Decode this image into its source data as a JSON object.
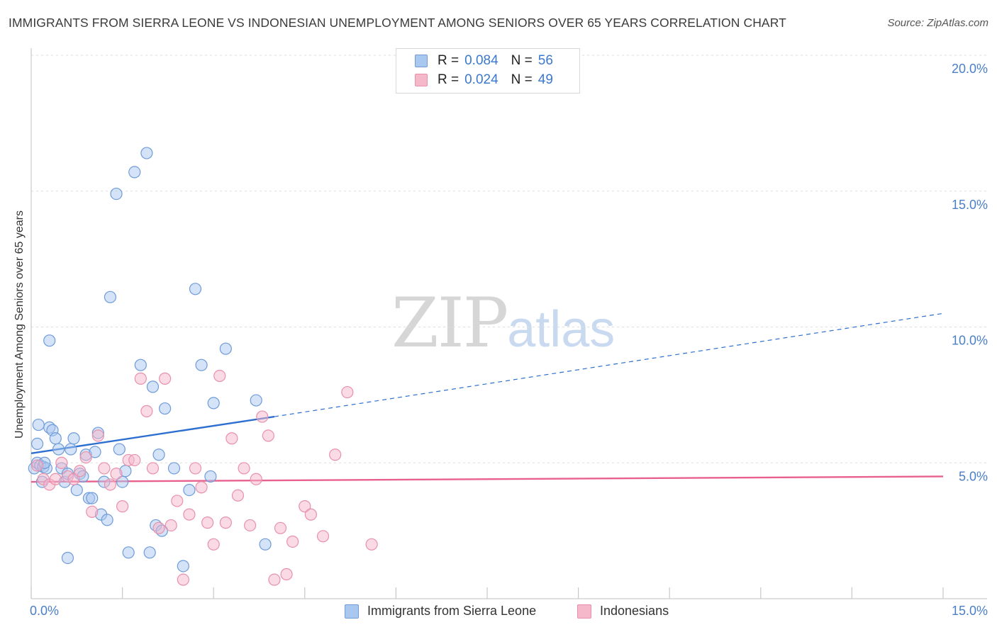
{
  "title": "IMMIGRANTS FROM SIERRA LEONE VS INDONESIAN UNEMPLOYMENT AMONG SENIORS OVER 65 YEARS CORRELATION CHART",
  "source": "Source: ZipAtlas.com",
  "watermark": {
    "zip": "ZIP",
    "atlas": "atlas"
  },
  "legend": {
    "row1": {
      "r_label": "R =",
      "r_value": "0.084",
      "n_label": "N =",
      "n_value": "56"
    },
    "row2": {
      "r_label": "R =",
      "r_value": "0.024",
      "n_label": "N =",
      "n_value": "49"
    }
  },
  "bottom_legend": {
    "series1": "Immigrants from Sierra Leone",
    "series2": "Indonesians"
  },
  "colors": {
    "blue_fill": "#a9c8f0",
    "blue_stroke": "#6f9bd8",
    "blue_line": "#2d6fd0",
    "pink_fill": "#f5b8cb",
    "pink_stroke": "#e890ac",
    "pink_line": "#e8608e",
    "tick_text": "#4a7fc8",
    "grid": "#dddddd"
  },
  "chart_data": {
    "type": "scatter",
    "title": "IMMIGRANTS FROM SIERRA LEONE VS INDONESIAN UNEMPLOYMENT AMONG SENIORS OVER 65 YEARS CORRELATION CHART",
    "xlabel": "",
    "ylabel": "Unemployment Among Seniors over 65 years",
    "xlim": [
      0,
      15
    ],
    "ylim": [
      0,
      20
    ],
    "x_tick_labels": [
      "0.0%",
      "15.0%"
    ],
    "y_ticks": [
      {
        "value": 5,
        "label": "5.0%"
      },
      {
        "value": 10,
        "label": "10.0%"
      },
      {
        "value": 15,
        "label": "15.0%"
      },
      {
        "value": 20,
        "label": "20.0%"
      }
    ],
    "series": [
      {
        "name": "Immigrants from Sierra Leone",
        "color": "blue",
        "trend": {
          "x0": 0.0,
          "y0": 5.35,
          "x1": 4.0,
          "y1": 6.7,
          "dashed_to_x": 15.0,
          "dashed_to_y": 10.5
        },
        "points": [
          [
            0.1,
            5.7
          ],
          [
            0.05,
            4.8
          ],
          [
            0.1,
            5.0
          ],
          [
            0.15,
            4.9
          ],
          [
            0.2,
            4.85
          ],
          [
            0.25,
            4.8
          ],
          [
            0.3,
            6.3
          ],
          [
            0.35,
            6.2
          ],
          [
            0.4,
            5.9
          ],
          [
            0.45,
            5.5
          ],
          [
            0.5,
            4.8
          ],
          [
            0.55,
            4.3
          ],
          [
            0.6,
            4.6
          ],
          [
            0.65,
            5.5
          ],
          [
            0.7,
            5.9
          ],
          [
            0.75,
            4.0
          ],
          [
            0.8,
            4.6
          ],
          [
            0.85,
            4.5
          ],
          [
            0.9,
            5.3
          ],
          [
            0.95,
            3.7
          ],
          [
            1.0,
            3.7
          ],
          [
            1.05,
            5.4
          ],
          [
            1.1,
            6.1
          ],
          [
            1.15,
            3.1
          ],
          [
            1.2,
            4.3
          ],
          [
            1.25,
            2.9
          ],
          [
            1.3,
            11.1
          ],
          [
            1.4,
            14.9
          ],
          [
            1.45,
            5.5
          ],
          [
            1.5,
            4.3
          ],
          [
            1.55,
            4.7
          ],
          [
            1.6,
            1.7
          ],
          [
            1.7,
            15.7
          ],
          [
            1.8,
            8.6
          ],
          [
            1.9,
            16.4
          ],
          [
            1.95,
            1.7
          ],
          [
            2.0,
            7.8
          ],
          [
            2.05,
            2.7
          ],
          [
            2.1,
            5.3
          ],
          [
            2.15,
            2.5
          ],
          [
            2.2,
            7.0
          ],
          [
            2.35,
            4.8
          ],
          [
            2.5,
            1.2
          ],
          [
            2.6,
            4.0
          ],
          [
            2.7,
            11.4
          ],
          [
            2.8,
            8.6
          ],
          [
            2.95,
            4.5
          ],
          [
            3.0,
            7.2
          ],
          [
            3.2,
            9.2
          ],
          [
            3.7,
            7.3
          ],
          [
            3.85,
            2.0
          ],
          [
            0.3,
            9.5
          ],
          [
            0.12,
            6.4
          ],
          [
            0.6,
            1.5
          ],
          [
            0.18,
            4.3
          ],
          [
            0.22,
            5.0
          ]
        ]
      },
      {
        "name": "Indonesians",
        "color": "pink",
        "trend": {
          "x0": 0.0,
          "y0": 4.3,
          "x1": 15.0,
          "y1": 4.5
        },
        "points": [
          [
            0.1,
            4.9
          ],
          [
            0.2,
            4.4
          ],
          [
            0.3,
            4.2
          ],
          [
            0.4,
            4.4
          ],
          [
            0.5,
            5.0
          ],
          [
            0.6,
            4.5
          ],
          [
            0.7,
            4.4
          ],
          [
            0.8,
            4.7
          ],
          [
            0.9,
            5.2
          ],
          [
            1.0,
            3.2
          ],
          [
            1.1,
            6.0
          ],
          [
            1.2,
            4.8
          ],
          [
            1.3,
            4.2
          ],
          [
            1.4,
            4.6
          ],
          [
            1.5,
            3.4
          ],
          [
            1.6,
            5.1
          ],
          [
            1.7,
            5.1
          ],
          [
            1.8,
            8.1
          ],
          [
            1.9,
            6.9
          ],
          [
            2.0,
            4.8
          ],
          [
            2.1,
            2.6
          ],
          [
            2.2,
            8.1
          ],
          [
            2.3,
            2.7
          ],
          [
            2.4,
            3.6
          ],
          [
            2.5,
            0.7
          ],
          [
            2.6,
            3.1
          ],
          [
            2.7,
            4.8
          ],
          [
            2.8,
            4.1
          ],
          [
            2.9,
            2.8
          ],
          [
            3.0,
            2.0
          ],
          [
            3.1,
            8.2
          ],
          [
            3.2,
            2.8
          ],
          [
            3.3,
            5.9
          ],
          [
            3.4,
            3.8
          ],
          [
            3.5,
            4.8
          ],
          [
            3.6,
            2.7
          ],
          [
            3.7,
            4.4
          ],
          [
            3.8,
            6.7
          ],
          [
            3.9,
            6.0
          ],
          [
            4.0,
            0.7
          ],
          [
            4.1,
            2.6
          ],
          [
            4.2,
            0.9
          ],
          [
            4.3,
            2.1
          ],
          [
            4.5,
            3.4
          ],
          [
            4.6,
            3.1
          ],
          [
            4.8,
            2.3
          ],
          [
            5.0,
            5.3
          ],
          [
            5.2,
            7.6
          ],
          [
            5.6,
            2.0
          ]
        ]
      }
    ]
  }
}
